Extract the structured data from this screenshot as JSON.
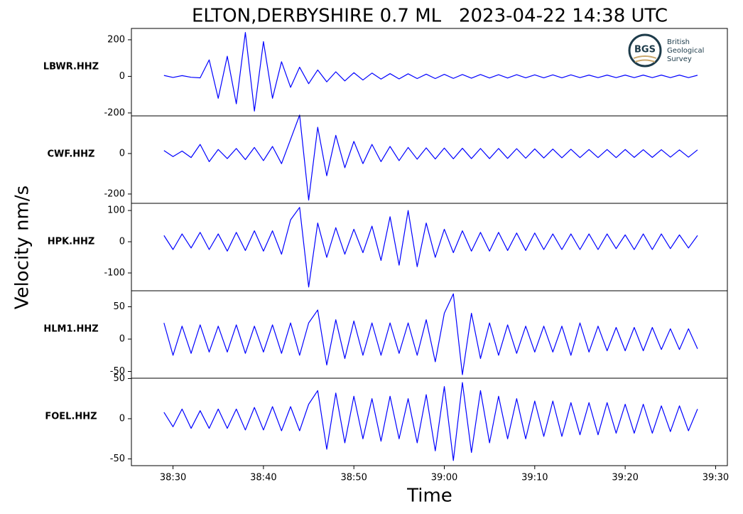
{
  "figure": {
    "title": "ELTON,DERBYSHIRE 0.7 ML   2023-04-22 14:38 UTC",
    "xlabel": "Time",
    "ylabel": "Velocity nm/s",
    "logo": {
      "mark": "BGS",
      "lines": [
        "British",
        "Geological",
        "Survey"
      ]
    }
  },
  "chart_data": [
    {
      "type": "line",
      "name": "LBWR.HHZ",
      "color": "#0000ff",
      "xlim": [
        2305.4,
        2371.3
      ],
      "ylim": [
        -216,
        262
      ],
      "yticks": [
        -200,
        0,
        200
      ],
      "x": [
        2309,
        2310,
        2311,
        2312,
        2313,
        2314,
        2315,
        2316,
        2317,
        2318,
        2319,
        2320,
        2321,
        2322,
        2323,
        2324,
        2325,
        2326,
        2327,
        2328,
        2329,
        2330,
        2331,
        2332,
        2333,
        2334,
        2335,
        2336,
        2337,
        2338,
        2339,
        2340,
        2341,
        2342,
        2343,
        2344,
        2345,
        2346,
        2347,
        2348,
        2349,
        2350,
        2351,
        2352,
        2353,
        2354,
        2355,
        2356,
        2357,
        2358,
        2359,
        2360,
        2361,
        2362,
        2363,
        2364,
        2365,
        2366,
        2367,
        2368
      ],
      "values": [
        5,
        -6,
        4,
        -5,
        -8,
        90,
        -120,
        110,
        -150,
        240,
        -190,
        190,
        -120,
        80,
        -60,
        50,
        -40,
        35,
        -30,
        25,
        -25,
        20,
        -20,
        18,
        -15,
        15,
        -14,
        14,
        -12,
        12,
        -12,
        11,
        -11,
        10,
        -10,
        10,
        -9,
        9,
        -9,
        9,
        -8,
        8,
        -8,
        8,
        -8,
        8,
        -7,
        7,
        -7,
        7,
        -7,
        7,
        -7,
        7,
        -7,
        7,
        -7,
        7,
        -7,
        6
      ]
    },
    {
      "type": "line",
      "name": "CWF.HHZ",
      "color": "#0000ff",
      "xlim": [
        2305.4,
        2371.3
      ],
      "ylim": [
        -246,
        186
      ],
      "yticks": [
        -200,
        0
      ],
      "x": [
        2309,
        2310,
        2311,
        2312,
        2313,
        2314,
        2315,
        2316,
        2317,
        2318,
        2319,
        2320,
        2321,
        2322,
        2323,
        2324,
        2325,
        2326,
        2327,
        2328,
        2329,
        2330,
        2331,
        2332,
        2333,
        2334,
        2335,
        2336,
        2337,
        2338,
        2339,
        2340,
        2341,
        2342,
        2343,
        2344,
        2345,
        2346,
        2347,
        2348,
        2349,
        2350,
        2351,
        2352,
        2353,
        2354,
        2355,
        2356,
        2357,
        2358,
        2359,
        2360,
        2361,
        2362,
        2363,
        2364,
        2365,
        2366,
        2367,
        2368
      ],
      "values": [
        15,
        -15,
        12,
        -20,
        45,
        -40,
        20,
        -25,
        25,
        -30,
        30,
        -35,
        35,
        -50,
        70,
        190,
        -230,
        130,
        -110,
        90,
        -70,
        60,
        -50,
        45,
        -40,
        35,
        -35,
        30,
        -28,
        28,
        -27,
        27,
        -26,
        26,
        -25,
        25,
        -25,
        25,
        -24,
        24,
        -23,
        23,
        -22,
        22,
        -21,
        21,
        -20,
        20,
        -20,
        20,
        -20,
        20,
        -19,
        19,
        -19,
        19,
        -18,
        18,
        -18,
        18
      ]
    },
    {
      "type": "line",
      "name": "HPK.HHZ",
      "color": "#0000ff",
      "xlim": [
        2305.4,
        2371.3
      ],
      "ylim": [
        -157,
        123
      ],
      "yticks": [
        -100,
        0,
        100
      ],
      "x": [
        2309,
        2310,
        2311,
        2312,
        2313,
        2314,
        2315,
        2316,
        2317,
        2318,
        2319,
        2320,
        2321,
        2322,
        2323,
        2324,
        2325,
        2326,
        2327,
        2328,
        2329,
        2330,
        2331,
        2332,
        2333,
        2334,
        2335,
        2336,
        2337,
        2338,
        2339,
        2340,
        2341,
        2342,
        2343,
        2344,
        2345,
        2346,
        2347,
        2348,
        2349,
        2350,
        2351,
        2352,
        2353,
        2354,
        2355,
        2356,
        2357,
        2358,
        2359,
        2360,
        2361,
        2362,
        2363,
        2364,
        2365,
        2366,
        2367,
        2368
      ],
      "values": [
        20,
        -25,
        25,
        -20,
        30,
        -25,
        25,
        -30,
        30,
        -28,
        35,
        -30,
        35,
        -40,
        70,
        110,
        -145,
        60,
        -50,
        45,
        -40,
        40,
        -35,
        50,
        -60,
        80,
        -75,
        100,
        -80,
        60,
        -50,
        40,
        -35,
        35,
        -30,
        30,
        -30,
        30,
        -28,
        28,
        -28,
        28,
        -25,
        25,
        -25,
        25,
        -25,
        25,
        -25,
        25,
        -22,
        22,
        -25,
        25,
        -25,
        25,
        -22,
        22,
        -20,
        20
      ]
    },
    {
      "type": "line",
      "name": "HLM1.HHZ",
      "color": "#0000ff",
      "xlim": [
        2305.4,
        2371.3
      ],
      "ylim": [
        -60.4,
        74.7
      ],
      "yticks": [
        -50,
        0,
        50
      ],
      "x": [
        2309,
        2310,
        2311,
        2312,
        2313,
        2314,
        2315,
        2316,
        2317,
        2318,
        2319,
        2320,
        2321,
        2322,
        2323,
        2324,
        2325,
        2326,
        2327,
        2328,
        2329,
        2330,
        2331,
        2332,
        2333,
        2334,
        2335,
        2336,
        2337,
        2338,
        2339,
        2340,
        2341,
        2342,
        2343,
        2344,
        2345,
        2346,
        2347,
        2348,
        2349,
        2350,
        2351,
        2352,
        2353,
        2354,
        2355,
        2356,
        2357,
        2358,
        2359,
        2360,
        2361,
        2362,
        2363,
        2364,
        2365,
        2366,
        2367,
        2368
      ],
      "values": [
        25,
        -25,
        20,
        -22,
        22,
        -20,
        20,
        -20,
        22,
        -22,
        20,
        -20,
        22,
        -22,
        25,
        -25,
        25,
        45,
        -40,
        30,
        -30,
        28,
        -25,
        25,
        -25,
        25,
        -22,
        25,
        -25,
        30,
        -35,
        40,
        70,
        -55,
        40,
        -30,
        25,
        -25,
        22,
        -22,
        20,
        -20,
        20,
        -20,
        20,
        -25,
        25,
        -20,
        20,
        -18,
        18,
        -18,
        18,
        -18,
        18,
        -16,
        16,
        -16,
        16,
        -15
      ]
    },
    {
      "type": "line",
      "name": "FOEL.HHZ",
      "color": "#0000ff",
      "xlim": [
        2305.4,
        2371.3
      ],
      "ylim": [
        -58.4,
        50.4
      ],
      "yticks": [
        -50,
        0,
        50
      ],
      "xticks": [
        {
          "value": 2310,
          "label": "38:30"
        },
        {
          "value": 2320,
          "label": "38:40"
        },
        {
          "value": 2330,
          "label": "38:50"
        },
        {
          "value": 2340,
          "label": "39:00"
        },
        {
          "value": 2350,
          "label": "39:10"
        },
        {
          "value": 2360,
          "label": "39:20"
        },
        {
          "value": 2370,
          "label": "39:30"
        }
      ],
      "x": [
        2309,
        2310,
        2311,
        2312,
        2313,
        2314,
        2315,
        2316,
        2317,
        2318,
        2319,
        2320,
        2321,
        2322,
        2323,
        2324,
        2325,
        2326,
        2327,
        2328,
        2329,
        2330,
        2331,
        2332,
        2333,
        2334,
        2335,
        2336,
        2337,
        2338,
        2339,
        2340,
        2341,
        2342,
        2343,
        2344,
        2345,
        2346,
        2347,
        2348,
        2349,
        2350,
        2351,
        2352,
        2353,
        2354,
        2355,
        2356,
        2357,
        2358,
        2359,
        2360,
        2361,
        2362,
        2363,
        2364,
        2365,
        2366,
        2367,
        2368
      ],
      "values": [
        8,
        -10,
        12,
        -12,
        10,
        -12,
        12,
        -12,
        12,
        -14,
        14,
        -14,
        15,
        -15,
        15,
        -15,
        18,
        35,
        -38,
        32,
        -30,
        28,
        -25,
        25,
        -28,
        28,
        -25,
        25,
        -30,
        30,
        -40,
        40,
        -52,
        45,
        -42,
        35,
        -30,
        28,
        -25,
        25,
        -25,
        22,
        -22,
        22,
        -22,
        20,
        -20,
        20,
        -20,
        20,
        -18,
        18,
        -18,
        18,
        -18,
        16,
        -16,
        16,
        -15,
        12
      ]
    }
  ]
}
